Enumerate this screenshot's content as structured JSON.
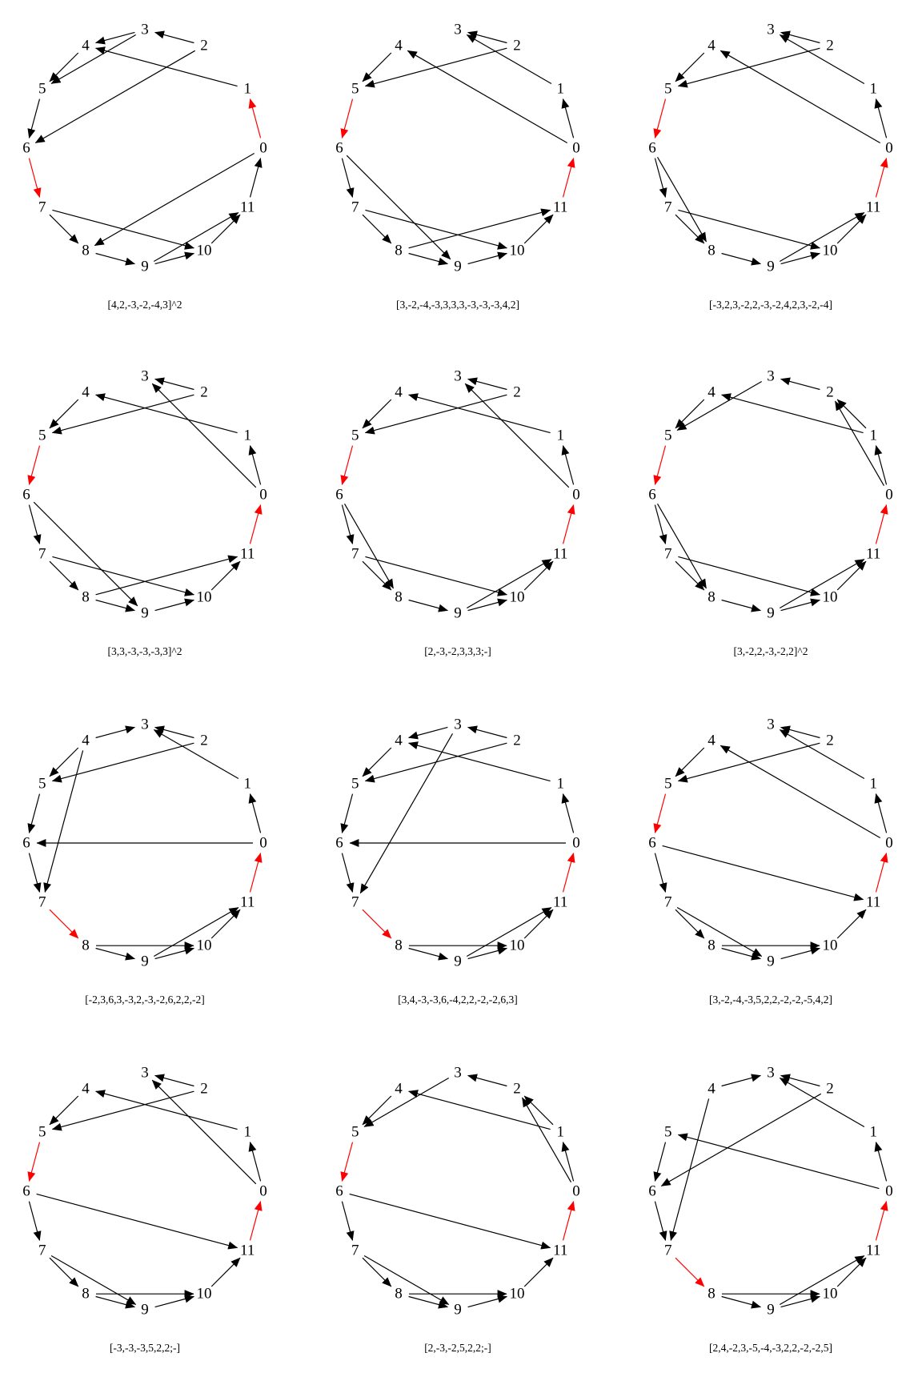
{
  "colors": {
    "edge": "#000000",
    "highlight": "#ff0000",
    "background": "#ffffff"
  },
  "node_labels": [
    "0",
    "1",
    "2",
    "3",
    "4",
    "5",
    "6",
    "7",
    "8",
    "9",
    "10",
    "11"
  ],
  "diagrams": [
    {
      "caption": "[4,2,-3,-2,-4,3]^2",
      "edges": [
        [
          0,
          1,
          "r"
        ],
        [
          1,
          4
        ],
        [
          2,
          3
        ],
        [
          2,
          6
        ],
        [
          3,
          4
        ],
        [
          3,
          5
        ],
        [
          4,
          5
        ],
        [
          5,
          6
        ],
        [
          6,
          7,
          "r"
        ],
        [
          7,
          10
        ],
        [
          7,
          8
        ],
        [
          0,
          8
        ],
        [
          8,
          9
        ],
        [
          9,
          10
        ],
        [
          9,
          11
        ],
        [
          10,
          11
        ],
        [
          11,
          0
        ]
      ]
    },
    {
      "caption": "[3,-2,-4,-3,3,3,3,-3,-3,-3,4,2]",
      "edges": [
        [
          0,
          1
        ],
        [
          1,
          3
        ],
        [
          2,
          3
        ],
        [
          2,
          5
        ],
        [
          0,
          4
        ],
        [
          4,
          5
        ],
        [
          5,
          6,
          "r"
        ],
        [
          6,
          7
        ],
        [
          6,
          9
        ],
        [
          7,
          10
        ],
        [
          7,
          8
        ],
        [
          8,
          9
        ],
        [
          8,
          11
        ],
        [
          9,
          10
        ],
        [
          10,
          11
        ],
        [
          11,
          0,
          "r"
        ]
      ]
    },
    {
      "caption": "[-3,2,3,-2,2,-3,-2,4,2,3,-2,-4]",
      "edges": [
        [
          0,
          1
        ],
        [
          1,
          3
        ],
        [
          2,
          3
        ],
        [
          2,
          5
        ],
        [
          0,
          4
        ],
        [
          4,
          5
        ],
        [
          5,
          6,
          "r"
        ],
        [
          6,
          7
        ],
        [
          6,
          8
        ],
        [
          7,
          8
        ],
        [
          7,
          10
        ],
        [
          8,
          9
        ],
        [
          9,
          10
        ],
        [
          9,
          11
        ],
        [
          10,
          11
        ],
        [
          11,
          0,
          "r"
        ]
      ]
    },
    {
      "caption": "[3,3,-3,-3,-3,3]^2",
      "edges": [
        [
          0,
          1
        ],
        [
          1,
          4
        ],
        [
          0,
          3
        ],
        [
          2,
          3
        ],
        [
          2,
          5
        ],
        [
          4,
          5
        ],
        [
          5,
          6,
          "r"
        ],
        [
          6,
          7
        ],
        [
          6,
          9
        ],
        [
          7,
          8
        ],
        [
          7,
          10
        ],
        [
          8,
          9
        ],
        [
          8,
          11
        ],
        [
          9,
          10
        ],
        [
          10,
          11
        ],
        [
          11,
          0,
          "r"
        ]
      ]
    },
    {
      "caption": "[2,-3,-2,3,3,3;-]",
      "edges": [
        [
          0,
          1
        ],
        [
          1,
          4
        ],
        [
          0,
          3
        ],
        [
          2,
          3
        ],
        [
          2,
          5
        ],
        [
          4,
          5
        ],
        [
          5,
          6,
          "r"
        ],
        [
          6,
          7
        ],
        [
          6,
          8
        ],
        [
          7,
          8
        ],
        [
          7,
          10
        ],
        [
          8,
          9
        ],
        [
          9,
          10
        ],
        [
          9,
          11
        ],
        [
          10,
          11
        ],
        [
          11,
          0,
          "r"
        ]
      ]
    },
    {
      "caption": "[3,-2,2,-3,-2,2]^2",
      "edges": [
        [
          0,
          1
        ],
        [
          1,
          4
        ],
        [
          0,
          2
        ],
        [
          1,
          2
        ],
        [
          2,
          3
        ],
        [
          3,
          5
        ],
        [
          4,
          5
        ],
        [
          5,
          6,
          "r"
        ],
        [
          6,
          7
        ],
        [
          6,
          8
        ],
        [
          7,
          8
        ],
        [
          7,
          10
        ],
        [
          8,
          9
        ],
        [
          9,
          10
        ],
        [
          9,
          11
        ],
        [
          10,
          11
        ],
        [
          11,
          0,
          "r"
        ]
      ]
    },
    {
      "caption": "[-2,3,6,3,-3,2,-3,-2,6,2,2,-2]",
      "edges": [
        [
          0,
          1
        ],
        [
          1,
          3
        ],
        [
          2,
          3
        ],
        [
          2,
          5
        ],
        [
          4,
          3
        ],
        [
          4,
          5
        ],
        [
          4,
          7
        ],
        [
          5,
          6
        ],
        [
          0,
          6
        ],
        [
          6,
          7
        ],
        [
          7,
          8,
          "r"
        ],
        [
          8,
          9
        ],
        [
          8,
          10
        ],
        [
          9,
          10
        ],
        [
          9,
          11
        ],
        [
          10,
          11
        ],
        [
          11,
          0,
          "r"
        ]
      ]
    },
    {
      "caption": "[3,4,-3,-3,6,-4,2,2,-2,-2,6,3]",
      "edges": [
        [
          0,
          1
        ],
        [
          1,
          4
        ],
        [
          2,
          3
        ],
        [
          2,
          5
        ],
        [
          3,
          4
        ],
        [
          3,
          7
        ],
        [
          4,
          5
        ],
        [
          5,
          6
        ],
        [
          0,
          6
        ],
        [
          6,
          7
        ],
        [
          7,
          8,
          "r"
        ],
        [
          8,
          9
        ],
        [
          8,
          10
        ],
        [
          9,
          10
        ],
        [
          9,
          11
        ],
        [
          10,
          11
        ],
        [
          11,
          0,
          "r"
        ]
      ]
    },
    {
      "caption": "[3,-2,-4,-3,5,2,2,-2,-2,-5,4,2]",
      "edges": [
        [
          0,
          1
        ],
        [
          1,
          3
        ],
        [
          2,
          3
        ],
        [
          2,
          5
        ],
        [
          0,
          4
        ],
        [
          4,
          5
        ],
        [
          5,
          6,
          "r"
        ],
        [
          6,
          7
        ],
        [
          6,
          11
        ],
        [
          7,
          8
        ],
        [
          7,
          9
        ],
        [
          8,
          9
        ],
        [
          8,
          10
        ],
        [
          9,
          10
        ],
        [
          10,
          11
        ],
        [
          11,
          0,
          "r"
        ]
      ]
    },
    {
      "caption": "[-3,-3,-3,5,2,2;-]",
      "edges": [
        [
          0,
          1
        ],
        [
          1,
          4
        ],
        [
          0,
          3
        ],
        [
          2,
          3
        ],
        [
          2,
          5
        ],
        [
          4,
          5
        ],
        [
          5,
          6,
          "r"
        ],
        [
          6,
          7
        ],
        [
          6,
          11
        ],
        [
          7,
          8
        ],
        [
          7,
          9
        ],
        [
          8,
          9
        ],
        [
          8,
          10
        ],
        [
          9,
          10
        ],
        [
          10,
          11
        ],
        [
          11,
          0,
          "r"
        ]
      ]
    },
    {
      "caption": "[2,-3,-2,5,2,2;-]",
      "edges": [
        [
          0,
          1
        ],
        [
          1,
          4
        ],
        [
          0,
          2
        ],
        [
          1,
          2
        ],
        [
          2,
          3
        ],
        [
          3,
          5
        ],
        [
          4,
          5
        ],
        [
          5,
          6,
          "r"
        ],
        [
          6,
          7
        ],
        [
          6,
          11
        ],
        [
          7,
          8
        ],
        [
          7,
          9
        ],
        [
          8,
          9
        ],
        [
          8,
          10
        ],
        [
          9,
          10
        ],
        [
          10,
          11
        ],
        [
          11,
          0,
          "r"
        ]
      ]
    },
    {
      "caption": "[2,4,-2,3,-5,-4,-3,2,2,-2,-2,5]",
      "edges": [
        [
          0,
          1
        ],
        [
          1,
          3
        ],
        [
          2,
          3
        ],
        [
          2,
          6
        ],
        [
          4,
          3
        ],
        [
          4,
          7
        ],
        [
          0,
          5
        ],
        [
          5,
          6
        ],
        [
          6,
          7
        ],
        [
          7,
          8,
          "r"
        ],
        [
          8,
          9
        ],
        [
          8,
          10
        ],
        [
          9,
          10
        ],
        [
          9,
          11
        ],
        [
          10,
          11
        ],
        [
          11,
          0,
          "r"
        ]
      ]
    }
  ]
}
